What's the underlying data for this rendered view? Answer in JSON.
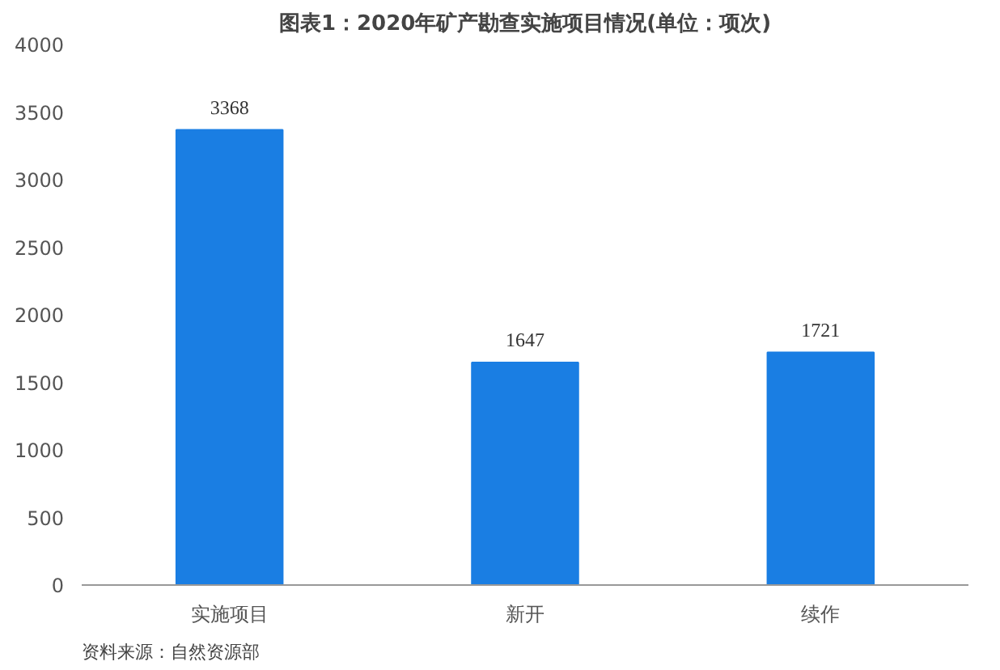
{
  "chart_data": {
    "type": "bar",
    "title": "图表1：2020年矿产勘查实施项目情况(单位：项次)",
    "categories": [
      "实施项目",
      "新开",
      "续作"
    ],
    "values": [
      3368,
      1647,
      1721
    ],
    "color": "#1a7ee3",
    "ylim": [
      0,
      4000
    ],
    "yticks": [
      0,
      500,
      1000,
      1500,
      2000,
      2500,
      3000,
      3500,
      4000
    ],
    "grid": false,
    "data_labels": true,
    "annotations": [
      "资料来源：自然资源部"
    ]
  }
}
